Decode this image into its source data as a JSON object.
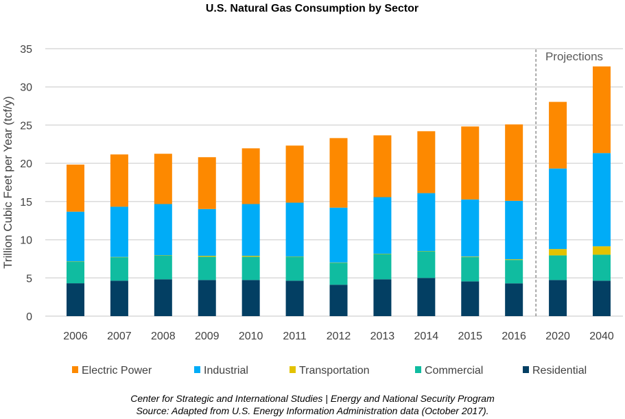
{
  "chart_data": {
    "type": "bar",
    "stacked": true,
    "title": "U.S. Natural Gas Consumption by Sector",
    "ylabel": "Trillion Cubic Feet per Year (tcf/y)",
    "xlabel": "",
    "ylim": [
      0,
      35
    ],
    "yticks": [
      0,
      5,
      10,
      15,
      20,
      25,
      30,
      35
    ],
    "grid": true,
    "legend_position": "bottom",
    "categories": [
      "2006",
      "2007",
      "2008",
      "2009",
      "2010",
      "2011",
      "2012",
      "2013",
      "2014",
      "2015",
      "2016",
      "2020",
      "2040"
    ],
    "annotation": {
      "label": "Projections",
      "after_category": "2016",
      "line": "dashed"
    },
    "series": [
      {
        "name": "Residential",
        "color": "#033f63",
        "values": [
          4.3,
          4.64,
          4.82,
          4.73,
          4.73,
          4.64,
          4.11,
          4.82,
          5.0,
          4.55,
          4.29,
          4.73,
          4.64
        ]
      },
      {
        "name": "Commercial",
        "color": "#10bca0",
        "values": [
          2.84,
          3.07,
          3.13,
          3.04,
          3.04,
          3.13,
          2.88,
          3.31,
          3.48,
          3.19,
          3.06,
          3.22,
          3.4
        ]
      },
      {
        "name": "Transportation",
        "color": "#e3c200",
        "values": [
          0.03,
          0.03,
          0.03,
          0.12,
          0.12,
          0.03,
          0.03,
          0.04,
          0.04,
          0.06,
          0.09,
          0.83,
          1.1
        ]
      },
      {
        "name": "Industrial",
        "color": "#00acf7",
        "values": [
          6.5,
          6.58,
          6.69,
          6.13,
          6.78,
          7.05,
          7.18,
          7.4,
          7.58,
          7.47,
          7.65,
          10.54,
          12.2
        ]
      },
      {
        "name": "Electric Power",
        "color": "#fd8900",
        "values": [
          6.16,
          6.84,
          6.58,
          6.78,
          7.29,
          7.47,
          9.1,
          8.09,
          8.1,
          9.55,
          10.0,
          8.72,
          11.34
        ]
      }
    ],
    "legend_order": [
      "Electric Power",
      "Industrial",
      "Transportation",
      "Commercial",
      "Residential"
    ]
  },
  "footer": {
    "line1": "Center for Strategic and International Studies | Energy and National Security Program",
    "line2": "Source: Adapted from U.S. Energy Information Administration data (October 2017)."
  }
}
